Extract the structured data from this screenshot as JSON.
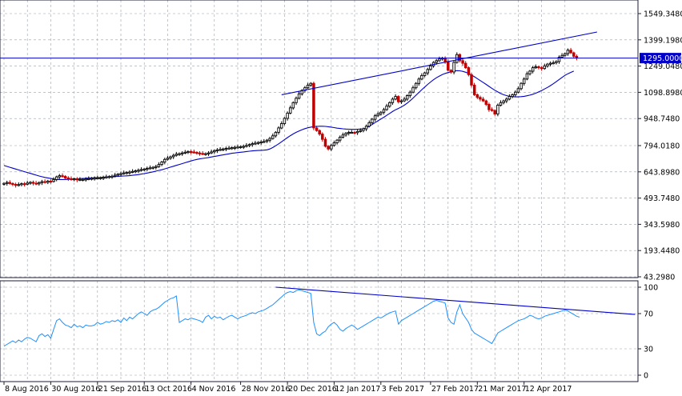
{
  "colors": {
    "background": "#ffffff",
    "grid": "#9aa0a8",
    "frame": "#1c1c30",
    "bull_candle": "#000000",
    "bear_candle": "#c00000",
    "moving_average": "#0000c8",
    "trendline": "#0000c8",
    "price_tag": "#0000c8",
    "indicator": "#1e90ff"
  },
  "chart_data": [
    {
      "type": "candlestick",
      "title": "",
      "ylim": [
        43.298,
        1620
      ],
      "grid": true,
      "y_ticks": [
        "1549.3480",
        "1399.1980",
        "1249.0480",
        "1098.8980",
        "948.7480",
        "794.0180",
        "643.8980",
        "493.7480",
        "343.5980",
        "193.4480",
        "43.2980"
      ],
      "y_tick_values": [
        1549.348,
        1399.198,
        1249.048,
        1098.898,
        948.748,
        794.018,
        643.898,
        493.748,
        343.598,
        193.448,
        43.298
      ],
      "current_price": "1295.0000",
      "current_price_value": 1295,
      "x_ticks": [
        "8 Aug 2016",
        "30 Aug 2016",
        "21 Sep 2016",
        "13 Oct 2016",
        "4 Nov 2016",
        "28 Nov 2016",
        "20 Dec 2016",
        "12 Jan 2017",
        "3 Feb 2017",
        "27 Feb 2017",
        "21 Mar 2017",
        "12 Apr 2017"
      ],
      "x_tick_index": [
        0,
        16,
        32,
        48,
        64,
        81,
        97,
        113,
        129,
        146,
        162,
        178
      ],
      "series": [
        {
          "kind": "close",
          "values": [
            578,
            583,
            577,
            572,
            567,
            571,
            576,
            573,
            580,
            584,
            579,
            575,
            582,
            588,
            584,
            591,
            589,
            600,
            615,
            622,
            618,
            609,
            605,
            600,
            604,
            598,
            600,
            601,
            603,
            605,
            607,
            608,
            609,
            610,
            612,
            615,
            617,
            619,
            625,
            630,
            634,
            638,
            640,
            643,
            646,
            650,
            653,
            657,
            660,
            664,
            667,
            670,
            674,
            686,
            700,
            715,
            722,
            730,
            738,
            745,
            748,
            752,
            756,
            760,
            758,
            755,
            752,
            749,
            746,
            748,
            752,
            758,
            765,
            770,
            772,
            775,
            778,
            780,
            782,
            784,
            786,
            788,
            790,
            795,
            800,
            805,
            808,
            812,
            815,
            818,
            825,
            835,
            850,
            870,
            895,
            920,
            950,
            980,
            1010,
            1040,
            1065,
            1090,
            1110,
            1125,
            1140,
            1150,
            895,
            880,
            860,
            830,
            790,
            775,
            795,
            810,
            825,
            842,
            855,
            865,
            870,
            870,
            868,
            875,
            880,
            890,
            905,
            925,
            945,
            965,
            975,
            985,
            1000,
            1020,
            1040,
            1060,
            1075,
            1045,
            1050,
            1060,
            1080,
            1100,
            1125,
            1150,
            1175,
            1195,
            1210,
            1230,
            1250,
            1270,
            1280,
            1290,
            1295,
            1275,
            1225,
            1215,
            1270,
            1315,
            1280,
            1265,
            1240,
            1200,
            1140,
            1085,
            1070,
            1060,
            1050,
            1030,
            1000,
            995,
            975,
            1025,
            1040,
            1050,
            1060,
            1075,
            1085,
            1100,
            1120,
            1150,
            1175,
            1205,
            1220,
            1240,
            1245,
            1240,
            1235,
            1250,
            1260,
            1265,
            1268,
            1275,
            1300,
            1310,
            1320,
            1340,
            1325,
            1305,
            1295
          ]
        },
        {
          "kind": "moving_average",
          "values": [
            680,
            675,
            670,
            665,
            660,
            655,
            650,
            645,
            640,
            635,
            630,
            625,
            620,
            616,
            612,
            609,
            606,
            603,
            601,
            600,
            600,
            600,
            601,
            602,
            603,
            604,
            605,
            606,
            607,
            608,
            609,
            610,
            611,
            612,
            613,
            614,
            615,
            616,
            617,
            618,
            619,
            620,
            621,
            622,
            624,
            626,
            628,
            631,
            634,
            637,
            640,
            644,
            648,
            652,
            656,
            661,
            666,
            671,
            676,
            681,
            686,
            691,
            696,
            701,
            706,
            711,
            715,
            718,
            721,
            723,
            726,
            729,
            732,
            735,
            738,
            741,
            744,
            747,
            750,
            752,
            754,
            756,
            758,
            760,
            762,
            764,
            765,
            766,
            767,
            768,
            770,
            775,
            783,
            793,
            804,
            816,
            828,
            840,
            851,
            861,
            870,
            878,
            885,
            891,
            896,
            900,
            903,
            904,
            905,
            905,
            904,
            902,
            900,
            897,
            894,
            892,
            890,
            889,
            888,
            887,
            887,
            888,
            889,
            890,
            895,
            905,
            915,
            926,
            936,
            946,
            956,
            967,
            978,
            989,
            999,
            1007,
            1015,
            1025,
            1037,
            1051,
            1066,
            1082,
            1098,
            1114,
            1129,
            1144,
            1158,
            1171,
            1182,
            1192,
            1200,
            1207,
            1212,
            1216,
            1220,
            1223,
            1222,
            1219,
            1214,
            1207,
            1198,
            1188,
            1177,
            1166,
            1155,
            1144,
            1133,
            1122,
            1111,
            1101,
            1092,
            1085,
            1080,
            1076,
            1074,
            1073,
            1073,
            1074,
            1076,
            1079,
            1083,
            1088,
            1094,
            1101,
            1109,
            1118,
            1127,
            1137,
            1148,
            1160,
            1172,
            1184,
            1196,
            1205,
            1213,
            1220
          ]
        }
      ],
      "trendline": {
        "from_index": 95,
        "from_value": 1085,
        "to_index": 203,
        "to_value": 1444
      }
    },
    {
      "type": "line",
      "title": "",
      "ylim": [
        -10,
        110
      ],
      "grid": true,
      "y_ticks": [
        "100",
        "70",
        "30",
        "0"
      ],
      "y_tick_values": [
        100,
        70,
        30,
        0
      ],
      "series": [
        {
          "values": [
            33,
            35,
            37,
            39,
            37,
            40,
            38,
            41,
            43,
            42,
            40,
            38,
            45,
            47,
            44,
            46,
            42,
            52,
            62,
            64,
            60,
            57,
            56,
            54,
            58,
            55,
            56,
            54,
            57,
            56,
            56,
            57,
            60,
            58,
            59,
            61,
            60,
            62,
            61,
            63,
            60,
            65,
            62,
            66,
            64,
            67,
            70,
            72,
            70,
            68,
            72,
            74,
            75,
            77,
            80,
            83,
            85,
            87,
            88,
            90,
            60,
            62,
            64,
            63,
            65,
            64,
            63,
            62,
            60,
            66,
            68,
            64,
            67,
            65,
            66,
            63,
            65,
            67,
            68,
            66,
            64,
            66,
            67,
            68,
            70,
            71,
            70,
            72,
            73,
            74,
            76,
            78,
            80,
            83,
            86,
            89,
            92,
            94,
            95,
            94,
            96,
            97,
            96,
            95,
            94,
            93,
            60,
            47,
            45,
            48,
            50,
            55,
            58,
            60,
            57,
            52,
            50,
            53,
            55,
            57,
            55,
            52,
            54,
            56,
            58,
            60,
            62,
            64,
            66,
            65,
            67,
            69,
            71,
            72,
            73,
            58,
            62,
            64,
            66,
            68,
            70,
            72,
            74,
            76,
            78,
            80,
            82,
            84,
            85,
            84,
            83,
            82,
            65,
            60,
            58,
            72,
            80,
            70,
            65,
            60,
            52,
            48,
            46,
            44,
            42,
            40,
            38,
            36,
            42,
            48,
            50,
            52,
            54,
            56,
            58,
            60,
            62,
            63,
            64,
            66,
            68,
            67,
            65,
            64,
            65,
            67,
            68,
            69,
            70,
            71,
            72,
            73,
            74,
            73,
            71,
            69,
            67,
            66
          ]
        }
      ],
      "trendline": {
        "from_index": 93,
        "from_value": 100,
        "to_index": 216,
        "to_value": 69
      }
    }
  ]
}
